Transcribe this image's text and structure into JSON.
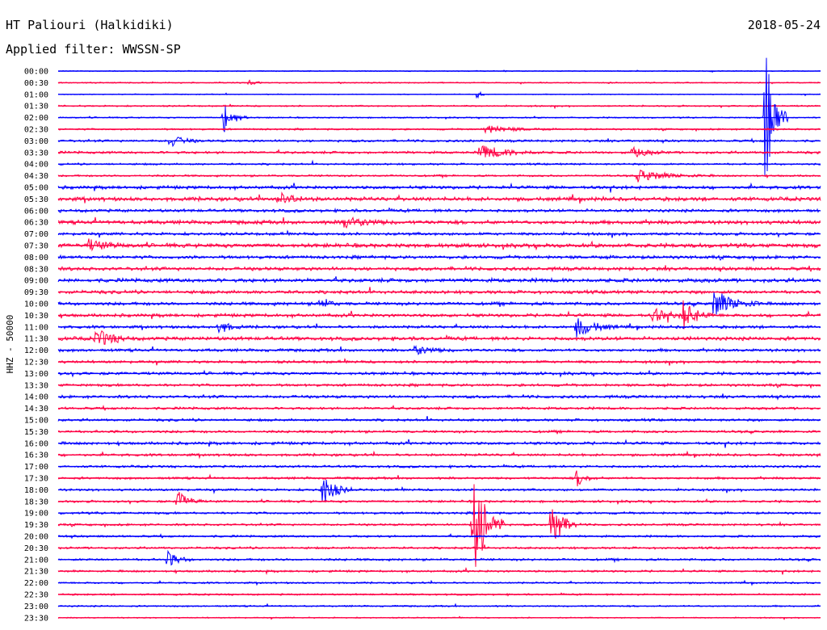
{
  "header": {
    "station": "HT Paliouri (Halkidiki)",
    "date": "2018-05-24",
    "filter": "Applied filter: WWSSN-SP"
  },
  "chart_data": {
    "type": "line",
    "title": "HT Paliouri (Halkidiki)",
    "subtitle": "Applied filter: WWSSN-SP",
    "date": "2018-05-24",
    "ylabel": "HHZ - 50000",
    "xlabel": "",
    "time_labels": [
      "00:00",
      "00:30",
      "01:00",
      "01:30",
      "02:00",
      "02:30",
      "03:00",
      "03:30",
      "04:00",
      "04:30",
      "05:00",
      "05:30",
      "06:00",
      "06:30",
      "07:00",
      "07:30",
      "08:00",
      "08:30",
      "09:00",
      "09:30",
      "10:00",
      "10:30",
      "11:00",
      "11:30",
      "12:00",
      "12:30",
      "13:00",
      "13:30",
      "14:00",
      "14:30",
      "15:00",
      "15:30",
      "16:00",
      "16:30",
      "17:00",
      "17:30",
      "18:00",
      "18:30",
      "19:00",
      "19:30",
      "20:00",
      "20:30",
      "21:00",
      "21:30",
      "22:00",
      "22:30",
      "23:00",
      "23:30"
    ],
    "trace_colors": [
      "#0000ff",
      "#ff0044"
    ],
    "x_range_minutes": [
      0,
      30
    ],
    "noise_level": [
      0.5,
      0.6,
      0.5,
      0.8,
      0.7,
      0.9,
      1.2,
      1.3,
      1.0,
      1.0,
      1.7,
      2.0,
      1.6,
      2.0,
      1.5,
      2.1,
      1.7,
      1.8,
      2.0,
      1.7,
      1.7,
      1.7,
      1.5,
      1.9,
      1.5,
      1.4,
      1.5,
      1.4,
      1.5,
      1.3,
      1.3,
      1.3,
      1.5,
      1.3,
      1.2,
      1.2,
      1.2,
      1.2,
      1.2,
      1.1,
      1.1,
      1.1,
      1.2,
      1.1,
      0.9,
      0.9,
      0.8,
      0.6
    ],
    "events": [
      {
        "row": 1,
        "minute": 7.5,
        "amp": 3,
        "dur": 0.8
      },
      {
        "row": 2,
        "minute": 16.5,
        "amp": 8,
        "dur": 0.3
      },
      {
        "row": 4,
        "minute": 6.5,
        "amp": 22,
        "dur": 1.0
      },
      {
        "row": 4,
        "minute": 27.8,
        "amp": 95,
        "dur": 0.9
      },
      {
        "row": 5,
        "minute": 16.8,
        "amp": 5,
        "dur": 2.5
      },
      {
        "row": 6,
        "minute": 4.4,
        "amp": 8,
        "dur": 1.2
      },
      {
        "row": 7,
        "minute": 16.6,
        "amp": 9,
        "dur": 2.5
      },
      {
        "row": 7,
        "minute": 22.6,
        "amp": 6,
        "dur": 1.5
      },
      {
        "row": 9,
        "minute": 22.8,
        "amp": 7,
        "dur": 3.0
      },
      {
        "row": 11,
        "minute": 8.6,
        "amp": 8,
        "dur": 1.6
      },
      {
        "row": 13,
        "minute": 11.2,
        "amp": 8,
        "dur": 2.0
      },
      {
        "row": 15,
        "minute": 1.2,
        "amp": 7,
        "dur": 1.6
      },
      {
        "row": 20,
        "minute": 10.3,
        "amp": 9,
        "dur": 0.8
      },
      {
        "row": 20,
        "minute": 25.8,
        "amp": 17,
        "dur": 2.0
      },
      {
        "row": 21,
        "minute": 23.4,
        "amp": 9,
        "dur": 1.5
      },
      {
        "row": 21,
        "minute": 24.6,
        "amp": 18,
        "dur": 1.2
      },
      {
        "row": 22,
        "minute": 6.3,
        "amp": 9,
        "dur": 1.0
      },
      {
        "row": 22,
        "minute": 20.4,
        "amp": 12,
        "dur": 1.8
      },
      {
        "row": 23,
        "minute": 1.5,
        "amp": 12,
        "dur": 1.5
      },
      {
        "row": 24,
        "minute": 14.0,
        "amp": 6,
        "dur": 1.6
      },
      {
        "row": 35,
        "minute": 20.4,
        "amp": 11,
        "dur": 0.8
      },
      {
        "row": 36,
        "minute": 10.4,
        "amp": 20,
        "dur": 1.2
      },
      {
        "row": 37,
        "minute": 4.7,
        "amp": 14,
        "dur": 1.0
      },
      {
        "row": 39,
        "minute": 16.3,
        "amp": 75,
        "dur": 1.3
      },
      {
        "row": 39,
        "minute": 19.4,
        "amp": 35,
        "dur": 1.0
      },
      {
        "row": 42,
        "minute": 4.3,
        "amp": 10,
        "dur": 1.0
      }
    ]
  }
}
